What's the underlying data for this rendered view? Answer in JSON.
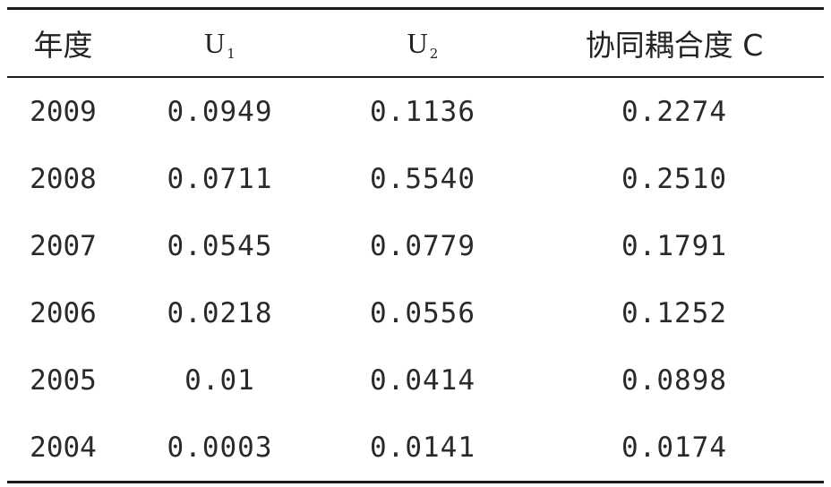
{
  "table": {
    "headers": {
      "year": "年度",
      "u1_letter": "U",
      "u1_sub": "1",
      "u2_letter": "U",
      "u2_sub": "2",
      "coupling": "协同耦合度 C"
    },
    "rows": [
      {
        "year": "2009",
        "u1": "0.0949",
        "u2": "0.1136",
        "c": "0.2274"
      },
      {
        "year": "2008",
        "u1": "0.0711",
        "u2": "0.5540",
        "c": "0.2510"
      },
      {
        "year": "2007",
        "u1": "0.0545",
        "u2": "0.0779",
        "c": "0.1791"
      },
      {
        "year": "2006",
        "u1": "0.0218",
        "u2": "0.0556",
        "c": "0.1252"
      },
      {
        "year": "2005",
        "u1": "0.01",
        "u2": "0.0414",
        "c": "0.0898"
      },
      {
        "year": "2004",
        "u1": "0.0003",
        "u2": "0.0141",
        "c": "0.0174"
      }
    ]
  }
}
